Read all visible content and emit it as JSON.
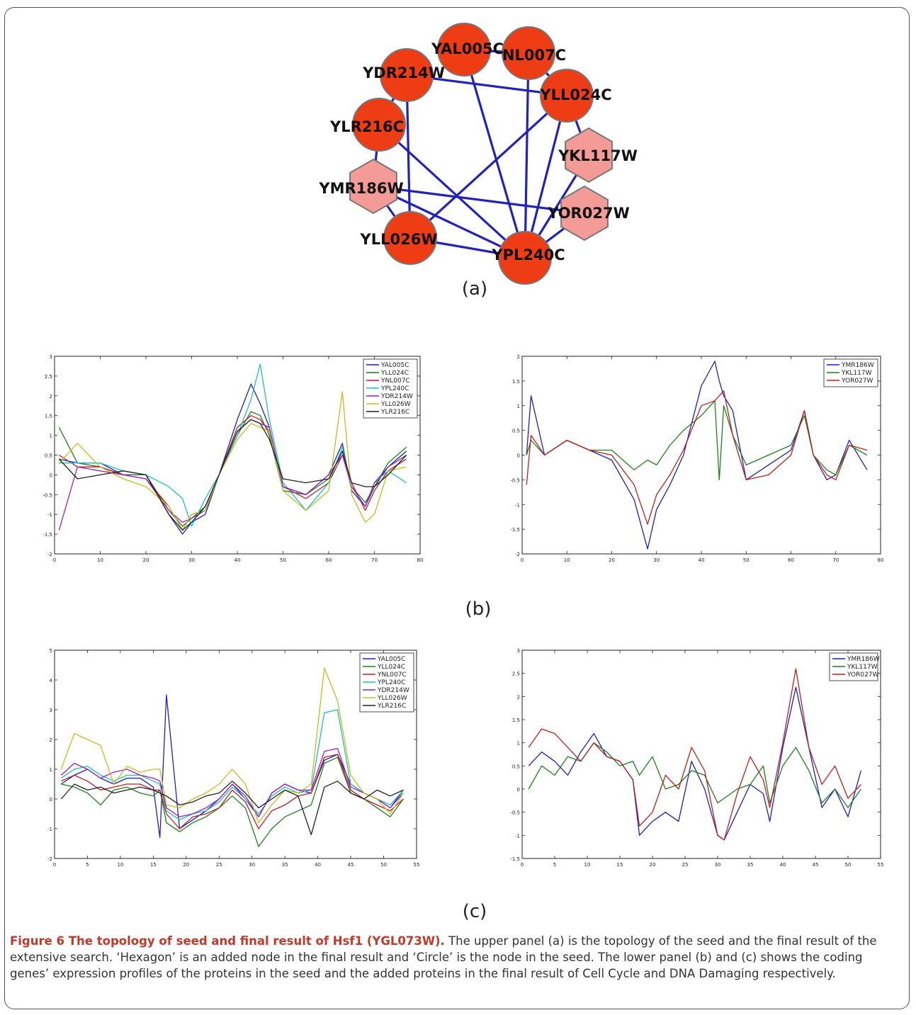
{
  "network": {
    "nodes": [
      {
        "id": "YAL005C",
        "shape": "circle"
      },
      {
        "id": "NL007C",
        "shape": "circle"
      },
      {
        "id": "YDR214W",
        "shape": "circle"
      },
      {
        "id": "YLL024C",
        "shape": "circle"
      },
      {
        "id": "YLR216C",
        "shape": "circle"
      },
      {
        "id": "YKL117W",
        "shape": "hexagon"
      },
      {
        "id": "YMR186W",
        "shape": "hexagon"
      },
      {
        "id": "YOR027W",
        "shape": "hexagon"
      },
      {
        "id": "YLL026W",
        "shape": "circle"
      },
      {
        "id": "YPL240C",
        "shape": "circle"
      }
    ],
    "edges": [
      [
        "YAL005C",
        "NL007C"
      ],
      [
        "YAL005C",
        "YPL240C"
      ],
      [
        "NL007C",
        "YLL024C"
      ],
      [
        "NL007C",
        "YPL240C"
      ],
      [
        "YDR214W",
        "YLR216C"
      ],
      [
        "YDR214W",
        "YLL024C"
      ],
      [
        "YDR214W",
        "YLL026W"
      ],
      [
        "YLL024C",
        "YLL026W"
      ],
      [
        "YLL024C",
        "YKL117W"
      ],
      [
        "YLL024C",
        "YPL240C"
      ],
      [
        "YLR216C",
        "YMR186W"
      ],
      [
        "YLR216C",
        "YPL240C"
      ],
      [
        "YMR186W",
        "YLL026W"
      ],
      [
        "YMR186W",
        "YOR027W"
      ],
      [
        "YMR186W",
        "YPL240C"
      ],
      [
        "YKL117W",
        "YPL240C"
      ],
      [
        "YOR027W",
        "YPL240C"
      ],
      [
        "YLL026W",
        "YPL240C"
      ]
    ],
    "colors": {
      "seed": "#ee3c14",
      "added": "#f49b98",
      "edge": "#2222bb",
      "stroke": "#777777"
    }
  },
  "labels": {
    "a": "(a)",
    "b": "(b)",
    "c": "(c)"
  },
  "caption": {
    "title": "Figure 6 The topology of seed and final result of Hsf1 (YGL073W).",
    "text": " The upper panel (a) is the topology of the seed and the final result of the extensive search. ‘Hexagon’ is an added node in the final result and ‘Circle’ is the node in the seed. The lower panel (b) and (c) shows the coding genes’ expression profiles of the proteins in the seed and the added proteins in the final result of Cell Cycle and DNA Damaging respectively."
  },
  "chart_data": [
    {
      "type": "line",
      "panel": "b-left",
      "xlim": [
        0,
        80
      ],
      "ylim": [
        -2,
        3
      ],
      "xticks": [
        0,
        10,
        20,
        30,
        40,
        50,
        60,
        70,
        80
      ],
      "yticks": [
        -2,
        -1.5,
        -1,
        -0.5,
        0,
        0.5,
        1,
        1.5,
        2,
        2.5,
        3
      ],
      "legend": "top-right",
      "x": [
        1,
        5,
        10,
        15,
        20,
        25,
        28,
        30,
        33,
        36,
        40,
        43,
        45,
        47,
        50,
        55,
        60,
        63,
        65,
        68,
        70,
        73,
        77
      ],
      "series": [
        {
          "name": "YAL005C",
          "color": "#1f1fbf",
          "values": [
            0.4,
            0.3,
            0.3,
            0,
            0,
            -1.0,
            -1.5,
            -1.2,
            -1.0,
            0,
            1.4,
            2.3,
            1.8,
            1.2,
            -0.3,
            -0.5,
            0,
            0.8,
            -0.4,
            -0.8,
            -0.3,
            0.2,
            0.6
          ]
        },
        {
          "name": "YLL024C",
          "color": "#1f7f1f",
          "values": [
            1.2,
            0.3,
            0.2,
            0,
            0,
            -0.9,
            -1.3,
            -1.1,
            -0.8,
            0,
            1.0,
            1.6,
            1.5,
            1.0,
            -0.4,
            -0.5,
            -0.1,
            0.6,
            -0.3,
            -0.7,
            -0.3,
            0.3,
            0.7
          ]
        },
        {
          "name": "YNL007C",
          "color": "#bf1f1f",
          "values": [
            0.5,
            0.2,
            0.2,
            0,
            -0.1,
            -0.8,
            -1.4,
            -1.0,
            -0.9,
            0,
            1.2,
            1.5,
            1.4,
            1.1,
            -0.3,
            -0.6,
            -0.2,
            0.5,
            -0.2,
            -0.9,
            -0.4,
            0.1,
            0.4
          ]
        },
        {
          "name": "YPL240C",
          "color": "#1fbfbf",
          "values": [
            0.3,
            0.3,
            0.3,
            0.1,
            0,
            -0.3,
            -0.6,
            -1.3,
            -0.6,
            0,
            1.0,
            1.9,
            2.8,
            1.4,
            -0.2,
            -0.9,
            -0.2,
            0.7,
            -0.3,
            -0.8,
            -0.2,
            0.1,
            -0.2
          ]
        },
        {
          "name": "YDR214W",
          "color": "#9f1fbf",
          "values": [
            -1.4,
            0.2,
            0.1,
            0,
            -0.1,
            -0.9,
            -1.2,
            -1.1,
            -0.9,
            0,
            1.1,
            1.4,
            1.3,
            1.2,
            -0.3,
            -0.5,
            0,
            0.5,
            -0.3,
            -0.8,
            -0.2,
            0.2,
            0.5
          ]
        },
        {
          "name": "YLL026W",
          "color": "#bfbf1f",
          "values": [
            0.3,
            0.8,
            0.2,
            -0.1,
            -0.3,
            -0.8,
            -1.4,
            -1.0,
            -0.9,
            0,
            0.9,
            1.3,
            1.2,
            1.1,
            -0.4,
            -0.9,
            -0.4,
            2.1,
            -0.5,
            -1.2,
            -1.0,
            0.1,
            0.2
          ]
        },
        {
          "name": "YLR216C",
          "color": "#222222",
          "values": [
            0.4,
            -0.1,
            0,
            0.1,
            0,
            -1.0,
            -1.4,
            -1.2,
            -0.8,
            0,
            1.1,
            1.4,
            1.3,
            0.9,
            -0.1,
            -0.2,
            -0.1,
            0.6,
            -0.2,
            -0.3,
            -0.3,
            0,
            0.5
          ]
        }
      ]
    },
    {
      "type": "line",
      "panel": "b-right",
      "xlim": [
        0,
        80
      ],
      "ylim": [
        -2,
        2
      ],
      "xticks": [
        0,
        10,
        20,
        30,
        40,
        50,
        60,
        70,
        80
      ],
      "yticks": [
        -2,
        -1.5,
        -1,
        -0.5,
        0,
        0.5,
        1,
        1.5,
        2
      ],
      "legend": "top-right",
      "x": [
        1,
        2,
        5,
        10,
        15,
        20,
        25,
        28,
        30,
        33,
        36,
        40,
        43,
        44,
        45,
        47,
        50,
        55,
        60,
        63,
        65,
        68,
        70,
        73,
        77
      ],
      "series": [
        {
          "name": "YMR186W",
          "color": "#1f1fbf",
          "values": [
            0,
            1.2,
            0,
            0.3,
            0.1,
            -0.1,
            -0.9,
            -1.9,
            -1.1,
            -0.6,
            0,
            1.4,
            1.9,
            1.5,
            1.2,
            0.9,
            -0.5,
            -0.2,
            0.1,
            0.9,
            0,
            -0.5,
            -0.4,
            0.3,
            -0.3
          ]
        },
        {
          "name": "YKL117W",
          "color": "#1f7f1f",
          "values": [
            0,
            0.3,
            0,
            0.3,
            0.1,
            0.1,
            -0.3,
            -0.1,
            -0.2,
            0.2,
            0.5,
            0.8,
            1.1,
            -0.5,
            1.0,
            0.4,
            -0.2,
            0,
            0.2,
            0.8,
            0,
            -0.3,
            -0.4,
            0.2,
            0
          ]
        },
        {
          "name": "YOR027W",
          "color": "#bf1f1f",
          "values": [
            -0.6,
            0.4,
            0,
            0.3,
            0.1,
            0,
            -0.6,
            -1.4,
            -0.8,
            -0.4,
            0.1,
            1.0,
            1.1,
            1.2,
            1.3,
            0.4,
            -0.5,
            -0.4,
            0,
            0.9,
            0,
            -0.4,
            -0.5,
            0.2,
            0.1
          ]
        }
      ]
    },
    {
      "type": "line",
      "panel": "c-left",
      "xlim": [
        0,
        55
      ],
      "ylim": [
        -2,
        5
      ],
      "xticks": [
        0,
        5,
        10,
        15,
        20,
        25,
        30,
        35,
        40,
        45,
        50,
        55
      ],
      "yticks": [
        -2,
        -1,
        0,
        1,
        2,
        3,
        4,
        5
      ],
      "legend": "top-right",
      "x": [
        1,
        3,
        5,
        7,
        9,
        11,
        13,
        15,
        16,
        17,
        19,
        21,
        23,
        25,
        27,
        29,
        31,
        33,
        35,
        37,
        39,
        41,
        43,
        45,
        47,
        49,
        51,
        53
      ],
      "series": [
        {
          "name": "YAL005C",
          "color": "#1f1fbf",
          "values": [
            0.5,
            0.8,
            1.0,
            0.7,
            0.5,
            0.7,
            0.7,
            0.4,
            -1.3,
            3.5,
            -1.0,
            -0.7,
            -0.4,
            0,
            0.5,
            0,
            -0.6,
            0.2,
            0.5,
            0.3,
            0.2,
            1.3,
            1.5,
            0.5,
            0.2,
            0,
            -0.3,
            0.3
          ]
        },
        {
          "name": "YLL024C",
          "color": "#1f7f1f",
          "values": [
            0.5,
            0.4,
            0.2,
            -0.2,
            0.3,
            0.4,
            0.2,
            0.1,
            0.3,
            -0.8,
            -1.1,
            -0.8,
            -0.6,
            -0.3,
            0.1,
            -0.3,
            -1.6,
            -1.0,
            -0.6,
            -0.4,
            -0.2,
            1.2,
            1.4,
            0.2,
            0,
            -0.3,
            -0.6,
            0
          ]
        },
        {
          "name": "YNL007C",
          "color": "#bf1f1f",
          "values": [
            0.6,
            0.8,
            0.6,
            0.3,
            0.4,
            0.5,
            0.5,
            0.3,
            0.3,
            -0.5,
            -1.0,
            -0.6,
            -0.5,
            -0.3,
            0.3,
            -0.1,
            -1.0,
            -0.4,
            -0.2,
            0.1,
            0.2,
            1.4,
            1.5,
            0.3,
            0,
            -0.2,
            -0.4,
            0
          ]
        },
        {
          "name": "YPL240C",
          "color": "#1fbfbf",
          "values": [
            0.7,
            1.0,
            1.1,
            0.8,
            0.6,
            0.8,
            0.8,
            0.6,
            0.5,
            -0.4,
            -0.7,
            -0.5,
            -0.4,
            -0.1,
            0.4,
            0,
            -0.5,
            0.1,
            0.4,
            0.2,
            0.3,
            2.9,
            3.0,
            0.5,
            0.2,
            0,
            -0.2,
            0.3
          ]
        },
        {
          "name": "YDR214W",
          "color": "#9f1fbf",
          "values": [
            0.8,
            1.2,
            1.0,
            0.7,
            0.9,
            1.0,
            0.8,
            0.7,
            0.6,
            -0.3,
            -0.6,
            -0.5,
            -0.3,
            0,
            0.5,
            0.1,
            -0.6,
            0.2,
            0.5,
            0.3,
            0.3,
            1.6,
            1.7,
            0.4,
            0.2,
            0,
            -0.3,
            0.2
          ]
        },
        {
          "name": "YLL026W",
          "color": "#bfbf1f",
          "values": [
            1.0,
            2.2,
            2.0,
            1.8,
            0.5,
            1.1,
            0.9,
            1.0,
            1.0,
            -0.2,
            -0.3,
            0,
            0.2,
            0.5,
            1.0,
            0.5,
            -0.8,
            -0.2,
            0.3,
            0.2,
            0.5,
            4.4,
            3.3,
            0.8,
            0.2,
            0,
            -0.5,
            0.2
          ]
        },
        {
          "name": "YLR216C",
          "color": "#222222",
          "values": [
            0,
            0.5,
            0.3,
            0.4,
            0.2,
            0.3,
            0.4,
            0.3,
            0.2,
            0.1,
            -0.2,
            -0.1,
            0.1,
            0.2,
            0.6,
            0.2,
            -0.3,
            0,
            0.3,
            0.1,
            -1.2,
            0.4,
            0.6,
            0.2,
            0,
            0.3,
            0.1,
            0.3
          ]
        }
      ]
    },
    {
      "type": "line",
      "panel": "c-right",
      "xlim": [
        0,
        55
      ],
      "ylim": [
        -1.5,
        3
      ],
      "xticks": [
        0,
        5,
        10,
        15,
        20,
        25,
        30,
        35,
        40,
        45,
        50,
        55
      ],
      "yticks": [
        -1.5,
        -1,
        -0.5,
        0,
        0.5,
        1,
        1.5,
        2,
        2.5,
        3
      ],
      "legend": "top-right",
      "x": [
        1,
        3,
        5,
        7,
        9,
        11,
        13,
        15,
        17,
        18,
        20,
        22,
        24,
        26,
        28,
        30,
        31,
        33,
        35,
        37,
        38,
        40,
        42,
        44,
        46,
        48,
        50,
        52
      ],
      "series": [
        {
          "name": "YMR186W",
          "color": "#1f1fbf",
          "values": [
            0.5,
            0.8,
            0.6,
            0.3,
            0.8,
            1.2,
            0.7,
            0.6,
            0.2,
            -1.0,
            -0.7,
            -0.5,
            -0.7,
            0.6,
            0,
            -1.0,
            -1.1,
            -0.5,
            0.1,
            -0.1,
            -0.7,
            0.9,
            2.2,
            0.9,
            -0.4,
            0,
            -0.6,
            0.4
          ]
        },
        {
          "name": "YKL117W",
          "color": "#1f7f1f",
          "values": [
            0,
            0.5,
            0.3,
            0.7,
            0.6,
            1.0,
            0.8,
            0.5,
            0.6,
            0.3,
            0.7,
            0,
            0.1,
            0.4,
            0.3,
            -0.3,
            -0.2,
            0,
            0.1,
            0.5,
            -0.3,
            0.5,
            0.9,
            0.4,
            -0.3,
            0,
            -0.4,
            0
          ]
        },
        {
          "name": "YOR027W",
          "color": "#bf1f1f",
          "values": [
            0.9,
            1.3,
            1.2,
            0.9,
            0.6,
            1.0,
            0.7,
            0.6,
            0.2,
            -0.8,
            -0.5,
            0.3,
            0,
            0.9,
            0.4,
            -1.0,
            -1.1,
            -0.1,
            0.7,
            0.2,
            -0.4,
            1.0,
            2.6,
            0.9,
            0.1,
            0.5,
            -0.2,
            0.1
          ]
        }
      ]
    }
  ]
}
